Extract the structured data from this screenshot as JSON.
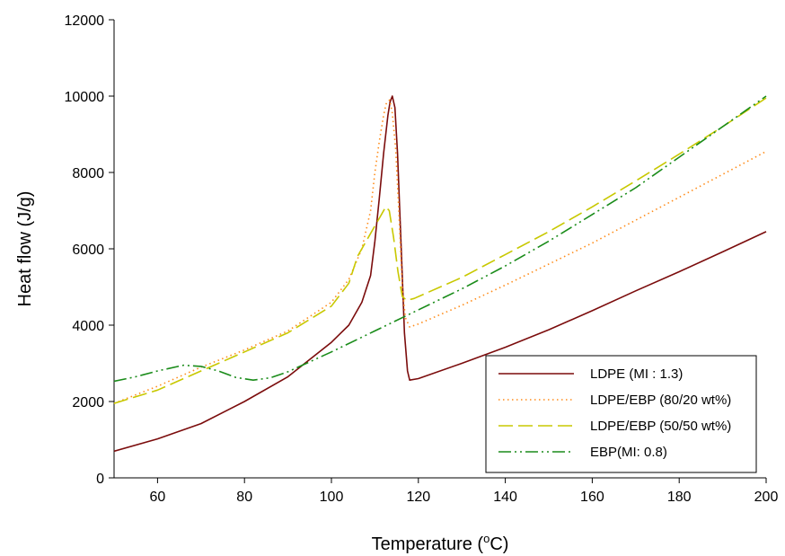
{
  "chart_data": {
    "type": "line",
    "xlabel": "Temperature (°C)",
    "xlabel_parts": {
      "before": "Temperature (",
      "sup": "o",
      "after": "C)"
    },
    "ylabel": "Heat flow (J/g)",
    "xlim": [
      50,
      200
    ],
    "ylim": [
      0,
      12000
    ],
    "xticks": [
      60,
      80,
      100,
      120,
      140,
      160,
      180,
      200
    ],
    "yticks": [
      0,
      2000,
      4000,
      6000,
      8000,
      10000,
      12000
    ],
    "grid": false,
    "legend_position": "bottom-right",
    "series": [
      {
        "name": "LDPE (MI : 1.3)",
        "color": "#7b0c0c",
        "dash": "solid",
        "points": [
          [
            50,
            700
          ],
          [
            60,
            1020
          ],
          [
            70,
            1420
          ],
          [
            80,
            2000
          ],
          [
            90,
            2650
          ],
          [
            100,
            3550
          ],
          [
            104,
            4000
          ],
          [
            107,
            4600
          ],
          [
            109,
            5300
          ],
          [
            110,
            6200
          ],
          [
            111,
            7300
          ],
          [
            112,
            8500
          ],
          [
            113,
            9500
          ],
          [
            113.5,
            9850
          ],
          [
            114,
            10000
          ],
          [
            114.6,
            9700
          ],
          [
            115.2,
            8500
          ],
          [
            116,
            6200
          ],
          [
            116.8,
            3800
          ],
          [
            117.5,
            2800
          ],
          [
            118,
            2560
          ],
          [
            120,
            2600
          ],
          [
            130,
            3000
          ],
          [
            140,
            3420
          ],
          [
            150,
            3880
          ],
          [
            160,
            4380
          ],
          [
            170,
            4900
          ],
          [
            180,
            5400
          ],
          [
            190,
            5920
          ],
          [
            200,
            6450
          ]
        ]
      },
      {
        "name": "LDPE/EBP (80/20 wt%)",
        "color": "#ff8c1a",
        "dash": "dotted",
        "points": [
          [
            50,
            1950
          ],
          [
            60,
            2400
          ],
          [
            70,
            2900
          ],
          [
            80,
            3350
          ],
          [
            90,
            3850
          ],
          [
            100,
            4600
          ],
          [
            104,
            5200
          ],
          [
            107,
            6000
          ],
          [
            109,
            7000
          ],
          [
            110,
            8000
          ],
          [
            111,
            8800
          ],
          [
            112,
            9500
          ],
          [
            112.6,
            9800
          ],
          [
            113.4,
            9900
          ],
          [
            114,
            9550
          ],
          [
            114.8,
            8600
          ],
          [
            115.5,
            7000
          ],
          [
            116.3,
            5000
          ],
          [
            117,
            4200
          ],
          [
            118,
            3950
          ],
          [
            120,
            4030
          ],
          [
            130,
            4520
          ],
          [
            140,
            5050
          ],
          [
            150,
            5600
          ],
          [
            160,
            6150
          ],
          [
            170,
            6750
          ],
          [
            180,
            7350
          ],
          [
            190,
            7950
          ],
          [
            200,
            8550
          ]
        ]
      },
      {
        "name": "LDPE/EBP (50/50 wt%)",
        "color": "#c8c800",
        "dash": "longdash",
        "points": [
          [
            50,
            1950
          ],
          [
            60,
            2300
          ],
          [
            70,
            2800
          ],
          [
            80,
            3300
          ],
          [
            90,
            3800
          ],
          [
            100,
            4500
          ],
          [
            104,
            5100
          ],
          [
            106,
            5800
          ],
          [
            108,
            6200
          ],
          [
            110,
            6600
          ],
          [
            111.5,
            6900
          ],
          [
            112.5,
            7100
          ],
          [
            113.3,
            7000
          ],
          [
            114.3,
            6300
          ],
          [
            115.3,
            5400
          ],
          [
            116.3,
            4750
          ],
          [
            117.3,
            4650
          ],
          [
            119,
            4700
          ],
          [
            130,
            5250
          ],
          [
            140,
            5850
          ],
          [
            150,
            6450
          ],
          [
            160,
            7100
          ],
          [
            170,
            7780
          ],
          [
            180,
            8480
          ],
          [
            190,
            9200
          ],
          [
            200,
            9950
          ]
        ]
      },
      {
        "name": "EBP(MI: 0.8)",
        "color": "#1a8c1a",
        "dash": "dashdotdot",
        "points": [
          [
            50,
            2530
          ],
          [
            55,
            2650
          ],
          [
            60,
            2800
          ],
          [
            66,
            2950
          ],
          [
            70,
            2920
          ],
          [
            74,
            2800
          ],
          [
            78,
            2630
          ],
          [
            82,
            2560
          ],
          [
            86,
            2620
          ],
          [
            90,
            2780
          ],
          [
            100,
            3300
          ],
          [
            110,
            3850
          ],
          [
            120,
            4400
          ],
          [
            130,
            4950
          ],
          [
            140,
            5550
          ],
          [
            150,
            6200
          ],
          [
            160,
            6900
          ],
          [
            170,
            7600
          ],
          [
            180,
            8400
          ],
          [
            190,
            9200
          ],
          [
            200,
            10000
          ]
        ]
      }
    ]
  }
}
